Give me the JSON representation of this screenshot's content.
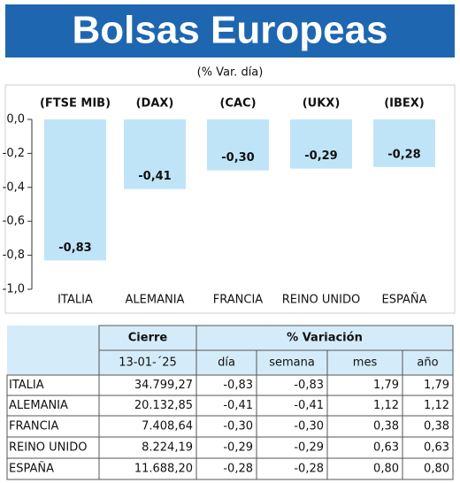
{
  "chart_data": {
    "type": "bar",
    "title": "Bolsas Europeas",
    "subtitle": "(% Var. día)",
    "categories": [
      "ITALIA",
      "ALEMANIA",
      "FRANCIA",
      "REINO UNIDO",
      "ESPAÑA"
    ],
    "indices": [
      "(FTSE MIB)",
      "(DAX)",
      "(CAC)",
      "(UKX)",
      "(IBEX)"
    ],
    "values": [
      -0.83,
      -0.41,
      -0.3,
      -0.29,
      -0.28
    ],
    "value_labels": [
      "-0,83",
      "-0,41",
      "-0,30",
      "-0,29",
      "-0,28"
    ],
    "color": "#bfe4f8",
    "ylim": [
      -1.0,
      0
    ],
    "yticks": [
      {
        "value": 0,
        "label": "0,0"
      },
      {
        "value": -0.2,
        "label": "-0,2"
      },
      {
        "value": -0.4,
        "label": "-0,4"
      },
      {
        "value": -0.6,
        "label": "-0,6"
      },
      {
        "value": -0.8,
        "label": "-0,8"
      },
      {
        "value": -1.0,
        "label": "-1,0"
      }
    ]
  },
  "table": {
    "header": [
      "Cierre",
      "% Variación"
    ],
    "subheader": [
      "13-01-´25",
      "día",
      "semana",
      "mes",
      "año"
    ],
    "rows": [
      [
        "ITALIA",
        "34.799,27",
        "-0,83",
        "-0,83",
        "1,79",
        "1,79"
      ],
      [
        "ALEMANIA",
        "20.132,85",
        "-0,41",
        "-0,41",
        "1,12",
        "1,12"
      ],
      [
        "FRANCIA",
        "7.408,64",
        "-0,30",
        "-0,30",
        "0,38",
        "0,38"
      ],
      [
        "REINO UNIDO",
        "8.224,19",
        "-0,29",
        "-0,29",
        "0,63",
        "0,63"
      ],
      [
        "ESPAÑA",
        "11.688,20",
        "-0,28",
        "-0,28",
        "0,80",
        "0,80"
      ]
    ]
  }
}
